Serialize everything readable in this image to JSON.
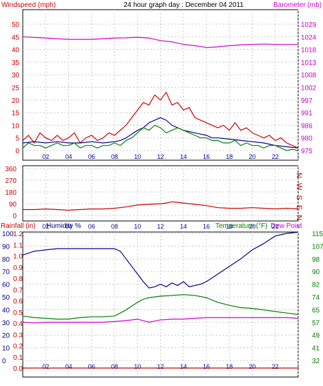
{
  "chart_data": [
    {
      "type": "line",
      "title": "24 hour graph day : December 04 2011",
      "left_axis_label": "Windspeed (mph)",
      "right_axis_label": "Barometer (mb)",
      "x_ticks": [
        "02",
        "04",
        "06",
        "08",
        "10",
        "12",
        "14",
        "16",
        "18",
        "20",
        "22",
        "i"
      ],
      "xlim": [
        0,
        24
      ],
      "left_ticks": [
        "0",
        "5",
        "10",
        "15",
        "20",
        "25",
        "30",
        "35",
        "40",
        "45",
        "50"
      ],
      "left_ylim": [
        0,
        50
      ],
      "right_ticks": [
        "975",
        "980",
        "986",
        "991",
        "997",
        "1002",
        "1008",
        "1013",
        "1018",
        "1024",
        "1029"
      ],
      "grid": true,
      "series": [
        {
          "color": "#cc0000",
          "axis": "left",
          "x": [
            0,
            0.5,
            1,
            1.5,
            2,
            2.5,
            3,
            3.5,
            4,
            4.5,
            5,
            5.5,
            6,
            6.5,
            7,
            7.5,
            8,
            8.5,
            9,
            9.5,
            10,
            10.5,
            11,
            11.5,
            12,
            12.5,
            13,
            13.5,
            14,
            14.5,
            15,
            15.5,
            16,
            16.5,
            17,
            17.5,
            18,
            18.5,
            19,
            19.5,
            20,
            20.5,
            21,
            21.5,
            22,
            22.5,
            23,
            23.5,
            24
          ],
          "values": [
            4,
            6,
            3,
            7,
            5,
            4,
            6,
            4,
            5,
            7,
            3,
            5,
            6,
            4,
            5,
            7,
            6,
            8,
            10,
            13,
            16,
            19,
            18,
            22,
            20,
            23,
            18,
            19,
            16,
            17,
            13,
            12,
            11,
            10,
            9,
            10,
            8,
            11,
            8,
            9,
            7,
            6,
            5,
            6,
            4,
            5,
            3,
            2,
            1
          ]
        },
        {
          "color": "#00008b",
          "axis": "left",
          "x": [
            0,
            1,
            2,
            3,
            4,
            5,
            6,
            7,
            8,
            8.5,
            9,
            9.5,
            10,
            10.5,
            11,
            11.5,
            12,
            12.5,
            13,
            13.5,
            14,
            14.5,
            15,
            15.5,
            16,
            16.5,
            17,
            18,
            19,
            20,
            21,
            22,
            23,
            24
          ],
          "values": [
            3,
            3.5,
            3,
            3.5,
            3,
            3,
            3.5,
            3,
            3.5,
            4,
            5,
            6.5,
            8,
            9,
            11,
            12,
            13,
            12,
            10,
            9,
            8,
            7.5,
            7,
            6.5,
            6,
            5,
            5,
            4.5,
            4,
            3.5,
            3,
            2,
            1.5,
            1
          ]
        },
        {
          "color": "#008000",
          "axis": "left",
          "x": [
            0,
            0.5,
            1,
            1.5,
            2,
            2.5,
            3,
            3.5,
            4,
            4.5,
            5,
            5.5,
            6,
            6.5,
            7,
            7.5,
            8,
            8.5,
            9,
            9.5,
            10,
            10.5,
            11,
            11.5,
            12,
            12.5,
            13,
            13.5,
            14,
            14.5,
            15,
            15.5,
            16,
            16.5,
            17,
            17.5,
            18,
            18.5,
            19,
            19.5,
            20,
            20.5,
            21,
            21.5,
            22,
            22.5,
            23,
            23.5,
            24
          ],
          "values": [
            1,
            3,
            2,
            2,
            1,
            2,
            3,
            2,
            2,
            3,
            1,
            2,
            2,
            1,
            2,
            2,
            3,
            2,
            4,
            5,
            7,
            9,
            8,
            10,
            9,
            7,
            8,
            9,
            8,
            7,
            6,
            5,
            5,
            4,
            4,
            3,
            3,
            4,
            2,
            3,
            2,
            2,
            1,
            2,
            2,
            1,
            0,
            0.5,
            0
          ]
        },
        {
          "color": "#cc00cc",
          "axis": "right",
          "x": [
            0,
            2,
            4,
            6,
            8,
            9,
            10,
            11,
            12,
            13,
            14,
            15,
            16,
            17,
            18,
            19,
            20,
            21,
            22,
            23,
            24
          ],
          "values": [
            45,
            44.5,
            44,
            44,
            44.5,
            44.6,
            44.8,
            44.5,
            43.5,
            43,
            42,
            41.5,
            40.8,
            41,
            41.5,
            41.8,
            42,
            42.1,
            42,
            42,
            42
          ]
        }
      ]
    },
    {
      "type": "line",
      "right_axis_label": "N W S E N",
      "left_ticks": [
        "0",
        "90",
        "180",
        "270",
        "360"
      ],
      "left_ylim": [
        0,
        360
      ],
      "right_ticks": [
        "N",
        "E",
        "S",
        "W",
        "N"
      ],
      "x_ticks": [
        "02",
        "04",
        "06",
        "08",
        "10",
        "12",
        "14",
        "16",
        "18",
        "20",
        "22",
        "i"
      ],
      "xlim": [
        0,
        24
      ],
      "series": [
        {
          "color": "#cc0000",
          "axis": "left",
          "x": [
            0,
            1,
            2,
            3,
            4,
            5,
            6,
            7,
            8,
            9,
            10,
            11,
            12,
            12.5,
            13,
            13.5,
            14,
            14.5,
            15,
            16,
            17,
            18,
            19,
            20,
            21,
            22,
            23,
            24
          ],
          "values": [
            45,
            45,
            50,
            45,
            40,
            45,
            50,
            50,
            55,
            65,
            80,
            85,
            90,
            95,
            105,
            100,
            95,
            90,
            85,
            75,
            60,
            55,
            55,
            60,
            55,
            50,
            55,
            50
          ]
        }
      ]
    },
    {
      "type": "line",
      "left_axis_label": "Rainfall (in)",
      "left_axis_label_2": "Humidity %",
      "right_axis_label": "Temperature (°F)",
      "right_axis_label_2": "Dew Point",
      "rain_ticks": [
        "0.0",
        "0.1",
        "0.2",
        "0.3",
        "0.4",
        "0.5",
        "0.6",
        "0.7",
        "0.8",
        "0.9",
        "1.0",
        "1.1",
        "1.2"
      ],
      "humidity_ticks": [
        "0",
        "10",
        "20",
        "30",
        "40",
        "50",
        "60",
        "70",
        "80",
        "90",
        "100"
      ],
      "left_ylim": [
        0,
        100
      ],
      "temp_ticks": [
        "32",
        "41",
        "49",
        "57",
        "65",
        "74",
        "82",
        "90",
        "98",
        "107",
        "115"
      ],
      "right_ylim": [
        32,
        115
      ],
      "x_ticks": [
        "02",
        "04",
        "06",
        "08",
        "10",
        "12",
        "14",
        "16",
        "18",
        "20",
        "22",
        "i"
      ],
      "xlim": [
        0,
        24
      ],
      "series": [
        {
          "color": "#00008b",
          "axis": "left",
          "x": [
            0,
            1,
            2,
            3,
            4,
            5,
            6,
            7,
            8,
            8.5,
            9,
            9.5,
            10,
            10.5,
            11,
            11.5,
            12,
            12.5,
            13,
            13.5,
            14,
            14.5,
            15,
            15.5,
            16,
            17,
            18,
            19,
            20,
            21,
            22,
            23,
            24
          ],
          "values": [
            83,
            86,
            87,
            88,
            88,
            88,
            88,
            88,
            88,
            86,
            80,
            74,
            68,
            62,
            57,
            58,
            60,
            58,
            61,
            59,
            62,
            58,
            59,
            60,
            62,
            68,
            74,
            80,
            87,
            92,
            98,
            100,
            101
          ]
        },
        {
          "color": "#008000",
          "axis": "right",
          "x": [
            0,
            1,
            2,
            3,
            4,
            5,
            6,
            7,
            8,
            9,
            10,
            10.5,
            11,
            12,
            13,
            14,
            15,
            16,
            17,
            18,
            19,
            20,
            21,
            22,
            23,
            24
          ],
          "values": [
            61,
            60,
            59.5,
            59,
            59,
            60,
            60.5,
            60.5,
            61,
            65,
            70,
            72,
            73,
            74,
            74.5,
            75,
            74.5,
            73,
            70,
            68,
            66.5,
            66,
            65,
            64,
            63,
            62
          ]
        },
        {
          "color": "#cc00cc",
          "axis": "right",
          "x": [
            0,
            1,
            2,
            3,
            4,
            5,
            6,
            7,
            8,
            9,
            10,
            10.5,
            11,
            12,
            13,
            14,
            15,
            16,
            17,
            18,
            19,
            20,
            21,
            22,
            23,
            24
          ],
          "values": [
            57,
            56.5,
            57,
            57,
            57,
            57,
            57,
            57,
            57.5,
            58,
            59,
            58,
            57,
            58.5,
            59,
            59,
            59.5,
            60,
            60,
            60,
            60,
            60,
            60,
            60,
            60,
            59.5
          ]
        },
        {
          "color": "#cc0000",
          "axis": "left",
          "x": [
            0,
            24
          ],
          "values": [
            0,
            0
          ]
        }
      ]
    }
  ]
}
